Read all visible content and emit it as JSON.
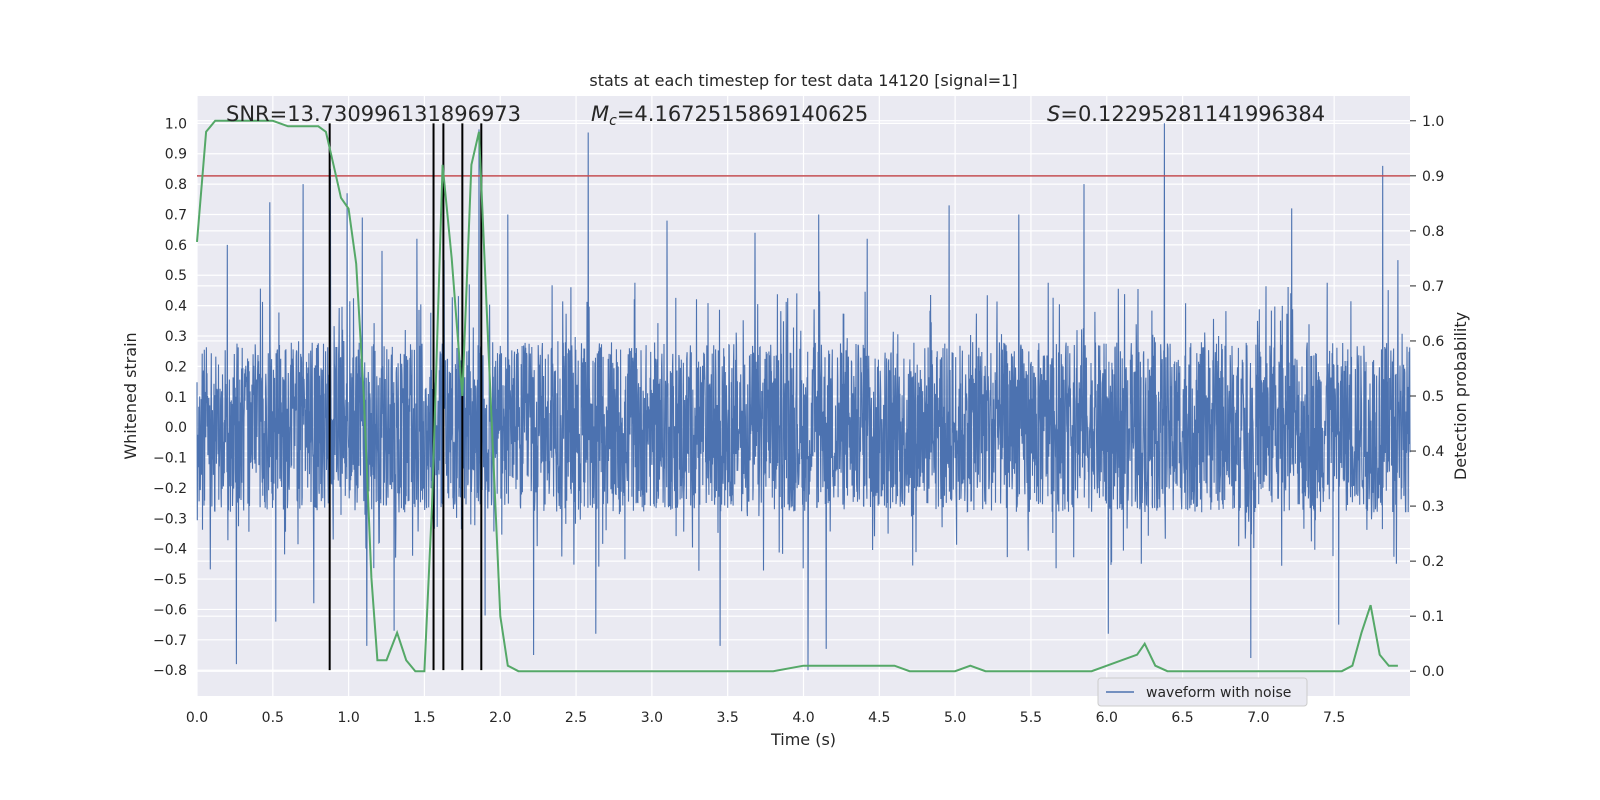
{
  "chart_data": {
    "type": "line",
    "title": "stats at each timestep for test data 14120 [signal=1]",
    "xlabel": "Time (s)",
    "ylabel": "Whitened strain",
    "ylabel_right": "Detection probability",
    "xlim": [
      0.0,
      8.0
    ],
    "ylim": [
      -0.885,
      1.09
    ],
    "ylim_right": [
      -0.045,
      1.045
    ],
    "x_ticks": [
      "0.0",
      "0.5",
      "1.0",
      "1.5",
      "2.0",
      "2.5",
      "3.0",
      "3.5",
      "4.0",
      "4.5",
      "5.0",
      "5.5",
      "6.0",
      "6.5",
      "7.0",
      "7.5"
    ],
    "x_tick_values": [
      0.0,
      0.5,
      1.0,
      1.5,
      2.0,
      2.5,
      3.0,
      3.5,
      4.0,
      4.5,
      5.0,
      5.5,
      6.0,
      6.5,
      7.0,
      7.5
    ],
    "y_ticks": [
      "1.0",
      "0.9",
      "0.8",
      "0.7",
      "0.6",
      "0.5",
      "0.4",
      "0.3",
      "0.2",
      "0.1",
      "0.0",
      "−0.1",
      "−0.2",
      "−0.3",
      "−0.4",
      "−0.5",
      "−0.6",
      "−0.7",
      "−0.8"
    ],
    "y_tick_values": [
      1.0,
      0.9,
      0.8,
      0.7,
      0.6,
      0.5,
      0.4,
      0.3,
      0.2,
      0.1,
      0.0,
      -0.1,
      -0.2,
      -0.3,
      -0.4,
      -0.5,
      -0.6,
      -0.7,
      -0.8
    ],
    "y_right_ticks": [
      "1.0",
      "0.9",
      "0.8",
      "0.7",
      "0.6",
      "0.5",
      "0.4",
      "0.3",
      "0.2",
      "0.1",
      "0.0"
    ],
    "y_right_tick_values": [
      1.0,
      0.9,
      0.8,
      0.7,
      0.6,
      0.5,
      0.4,
      0.3,
      0.2,
      0.1,
      0.0
    ],
    "grid": true,
    "legend": {
      "position": "lower-right",
      "entries": [
        "waveform with noise"
      ]
    },
    "annotations": {
      "snr": "SNR=13.730996131896973",
      "mc_symbol": "M",
      "mc_sub": "c",
      "mc_value": "=4.1672515869140625",
      "s_symbol": "S",
      "s_value": "=0.12295281141996384"
    },
    "threshold_right": 0.9,
    "vertical_markers": [
      0.875,
      1.56,
      1.625,
      1.75,
      1.875
    ],
    "vertical_marker_range": [
      -0.8,
      1.0
    ],
    "waveform": {
      "name": "waveform with noise",
      "dt": 0.002,
      "base_amplitude": 0.28,
      "peaks": [
        [
          0.2,
          0.6
        ],
        [
          0.26,
          -0.78
        ],
        [
          0.48,
          0.74
        ],
        [
          0.52,
          -0.64
        ],
        [
          0.7,
          0.8
        ],
        [
          0.77,
          -0.58
        ],
        [
          0.88,
          0.85
        ],
        [
          0.99,
          0.77
        ],
        [
          1.09,
          0.69
        ],
        [
          1.12,
          -0.72
        ],
        [
          1.22,
          0.58
        ],
        [
          1.3,
          -0.67
        ],
        [
          1.45,
          0.62
        ],
        [
          1.56,
          0.78
        ],
        [
          1.63,
          0.55
        ],
        [
          1.75,
          0.79
        ],
        [
          1.86,
          0.98
        ],
        [
          1.9,
          -0.62
        ],
        [
          2.05,
          0.7
        ],
        [
          2.22,
          -0.75
        ],
        [
          2.58,
          0.97
        ],
        [
          2.63,
          -0.68
        ],
        [
          3.1,
          0.68
        ],
        [
          3.45,
          -0.72
        ],
        [
          3.68,
          0.64
        ],
        [
          4.03,
          -0.8
        ],
        [
          4.1,
          0.7
        ],
        [
          4.15,
          -0.73
        ],
        [
          4.42,
          0.62
        ],
        [
          4.96,
          0.73
        ],
        [
          5.42,
          0.7
        ],
        [
          5.85,
          0.8
        ],
        [
          6.01,
          -0.68
        ],
        [
          6.38,
          1.0
        ],
        [
          6.95,
          -0.76
        ],
        [
          7.22,
          0.72
        ],
        [
          7.53,
          -0.65
        ],
        [
          7.82,
          0.86
        ],
        [
          7.92,
          0.55
        ]
      ]
    },
    "detection_probability": {
      "x": [
        0.0,
        0.06,
        0.12,
        0.2,
        0.3,
        0.4,
        0.5,
        0.6,
        0.7,
        0.8,
        0.85,
        0.9,
        0.95,
        1.0,
        1.05,
        1.1,
        1.15,
        1.19,
        1.25,
        1.32,
        1.38,
        1.44,
        1.5,
        1.55,
        1.62,
        1.68,
        1.75,
        1.81,
        1.86,
        1.92,
        2.0,
        2.05,
        2.12,
        2.2,
        2.5,
        3.0,
        3.5,
        3.8,
        4.0,
        4.1,
        4.2,
        4.3,
        4.4,
        4.5,
        4.6,
        4.7,
        4.8,
        4.9,
        5.0,
        5.1,
        5.2,
        5.3,
        5.4,
        5.5,
        5.6,
        5.7,
        5.8,
        5.9,
        6.0,
        6.1,
        6.2,
        6.25,
        6.32,
        6.4,
        6.5,
        6.7,
        7.0,
        7.3,
        7.55,
        7.62,
        7.68,
        7.74,
        7.8,
        7.86,
        7.92
      ],
      "y": [
        0.78,
        0.98,
        1.0,
        1.0,
        1.0,
        1.0,
        1.0,
        0.99,
        0.99,
        0.99,
        0.98,
        0.92,
        0.86,
        0.84,
        0.74,
        0.5,
        0.17,
        0.02,
        0.02,
        0.07,
        0.02,
        0.0,
        0.0,
        0.3,
        0.92,
        0.75,
        0.5,
        0.92,
        0.98,
        0.6,
        0.1,
        0.01,
        0.0,
        0.0,
        0.0,
        0.0,
        0.0,
        0.0,
        0.01,
        0.01,
        0.01,
        0.01,
        0.01,
        0.01,
        0.01,
        0.0,
        0.0,
        0.0,
        0.0,
        0.01,
        0.0,
        0.0,
        0.0,
        0.0,
        0.0,
        0.0,
        0.0,
        0.0,
        0.01,
        0.02,
        0.03,
        0.05,
        0.01,
        0.0,
        0.0,
        0.0,
        0.0,
        0.0,
        0.0,
        0.01,
        0.07,
        0.12,
        0.03,
        0.01,
        0.01
      ]
    }
  }
}
